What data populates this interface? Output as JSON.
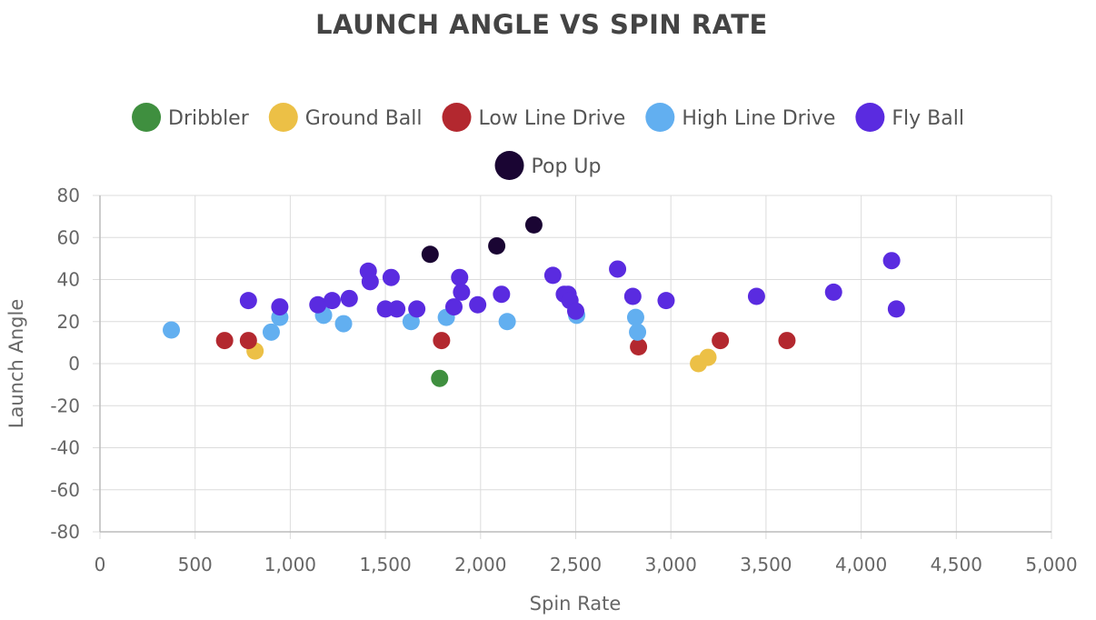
{
  "chart_data": {
    "type": "scatter",
    "title": "LAUNCH ANGLE VS SPIN RATE",
    "xlabel": "Spin Rate",
    "ylabel": "Launch Angle",
    "xlim": [
      0,
      5000
    ],
    "ylim": [
      -80,
      80
    ],
    "x_ticks": [
      "0",
      "500",
      "1,000",
      "1,500",
      "2,000",
      "2,500",
      "3,000",
      "3,500",
      "4,000",
      "4,500",
      "5,000"
    ],
    "y_ticks": [
      "80",
      "60",
      "40",
      "20",
      "0",
      "-20",
      "-40",
      "-60",
      "-80"
    ],
    "x_tick_values": [
      0,
      500,
      1000,
      1500,
      2000,
      2500,
      3000,
      3500,
      4000,
      4500,
      5000
    ],
    "y_tick_values": [
      80,
      60,
      40,
      20,
      0,
      -20,
      -40,
      -60,
      -80
    ],
    "grid": true,
    "legend_position": "top",
    "series": [
      {
        "name": "Dribbler",
        "color": "#3f8f3f",
        "points": [
          [
            1785,
            -7
          ]
        ]
      },
      {
        "name": "Ground Ball",
        "color": "#ecc046",
        "points": [
          [
            815,
            6
          ],
          [
            3145,
            0
          ],
          [
            3195,
            3
          ]
        ]
      },
      {
        "name": "Low Line Drive",
        "color": "#b3282f",
        "points": [
          [
            655,
            11
          ],
          [
            780,
            11
          ],
          [
            1795,
            11
          ],
          [
            2830,
            8
          ],
          [
            3260,
            11
          ],
          [
            3610,
            11
          ]
        ]
      },
      {
        "name": "High Line Drive",
        "color": "#62aff0",
        "points": [
          [
            375,
            16
          ],
          [
            900,
            15
          ],
          [
            945,
            22
          ],
          [
            1175,
            23
          ],
          [
            1280,
            19
          ],
          [
            1635,
            20
          ],
          [
            1820,
            22
          ],
          [
            2140,
            20
          ],
          [
            2505,
            23
          ],
          [
            2815,
            22
          ],
          [
            2825,
            15
          ]
        ]
      },
      {
        "name": "Fly Ball",
        "color": "#5a2be0",
        "points": [
          [
            780,
            30
          ],
          [
            945,
            27
          ],
          [
            1145,
            28
          ],
          [
            1220,
            30
          ],
          [
            1310,
            31
          ],
          [
            1410,
            44
          ],
          [
            1420,
            39
          ],
          [
            1500,
            26
          ],
          [
            1530,
            41
          ],
          [
            1560,
            26
          ],
          [
            1665,
            26
          ],
          [
            1860,
            27
          ],
          [
            1890,
            41
          ],
          [
            1900,
            34
          ],
          [
            1985,
            28
          ],
          [
            2110,
            33
          ],
          [
            2380,
            42
          ],
          [
            2440,
            33
          ],
          [
            2460,
            33
          ],
          [
            2470,
            30
          ],
          [
            2500,
            25
          ],
          [
            2720,
            45
          ],
          [
            2800,
            32
          ],
          [
            2975,
            30
          ],
          [
            3450,
            32
          ],
          [
            3855,
            34
          ],
          [
            4160,
            49
          ],
          [
            4185,
            26
          ]
        ]
      },
      {
        "name": "Pop Up",
        "color": "#1a0533",
        "points": [
          [
            1735,
            52
          ],
          [
            2085,
            56
          ],
          [
            2280,
            66
          ]
        ]
      }
    ]
  }
}
